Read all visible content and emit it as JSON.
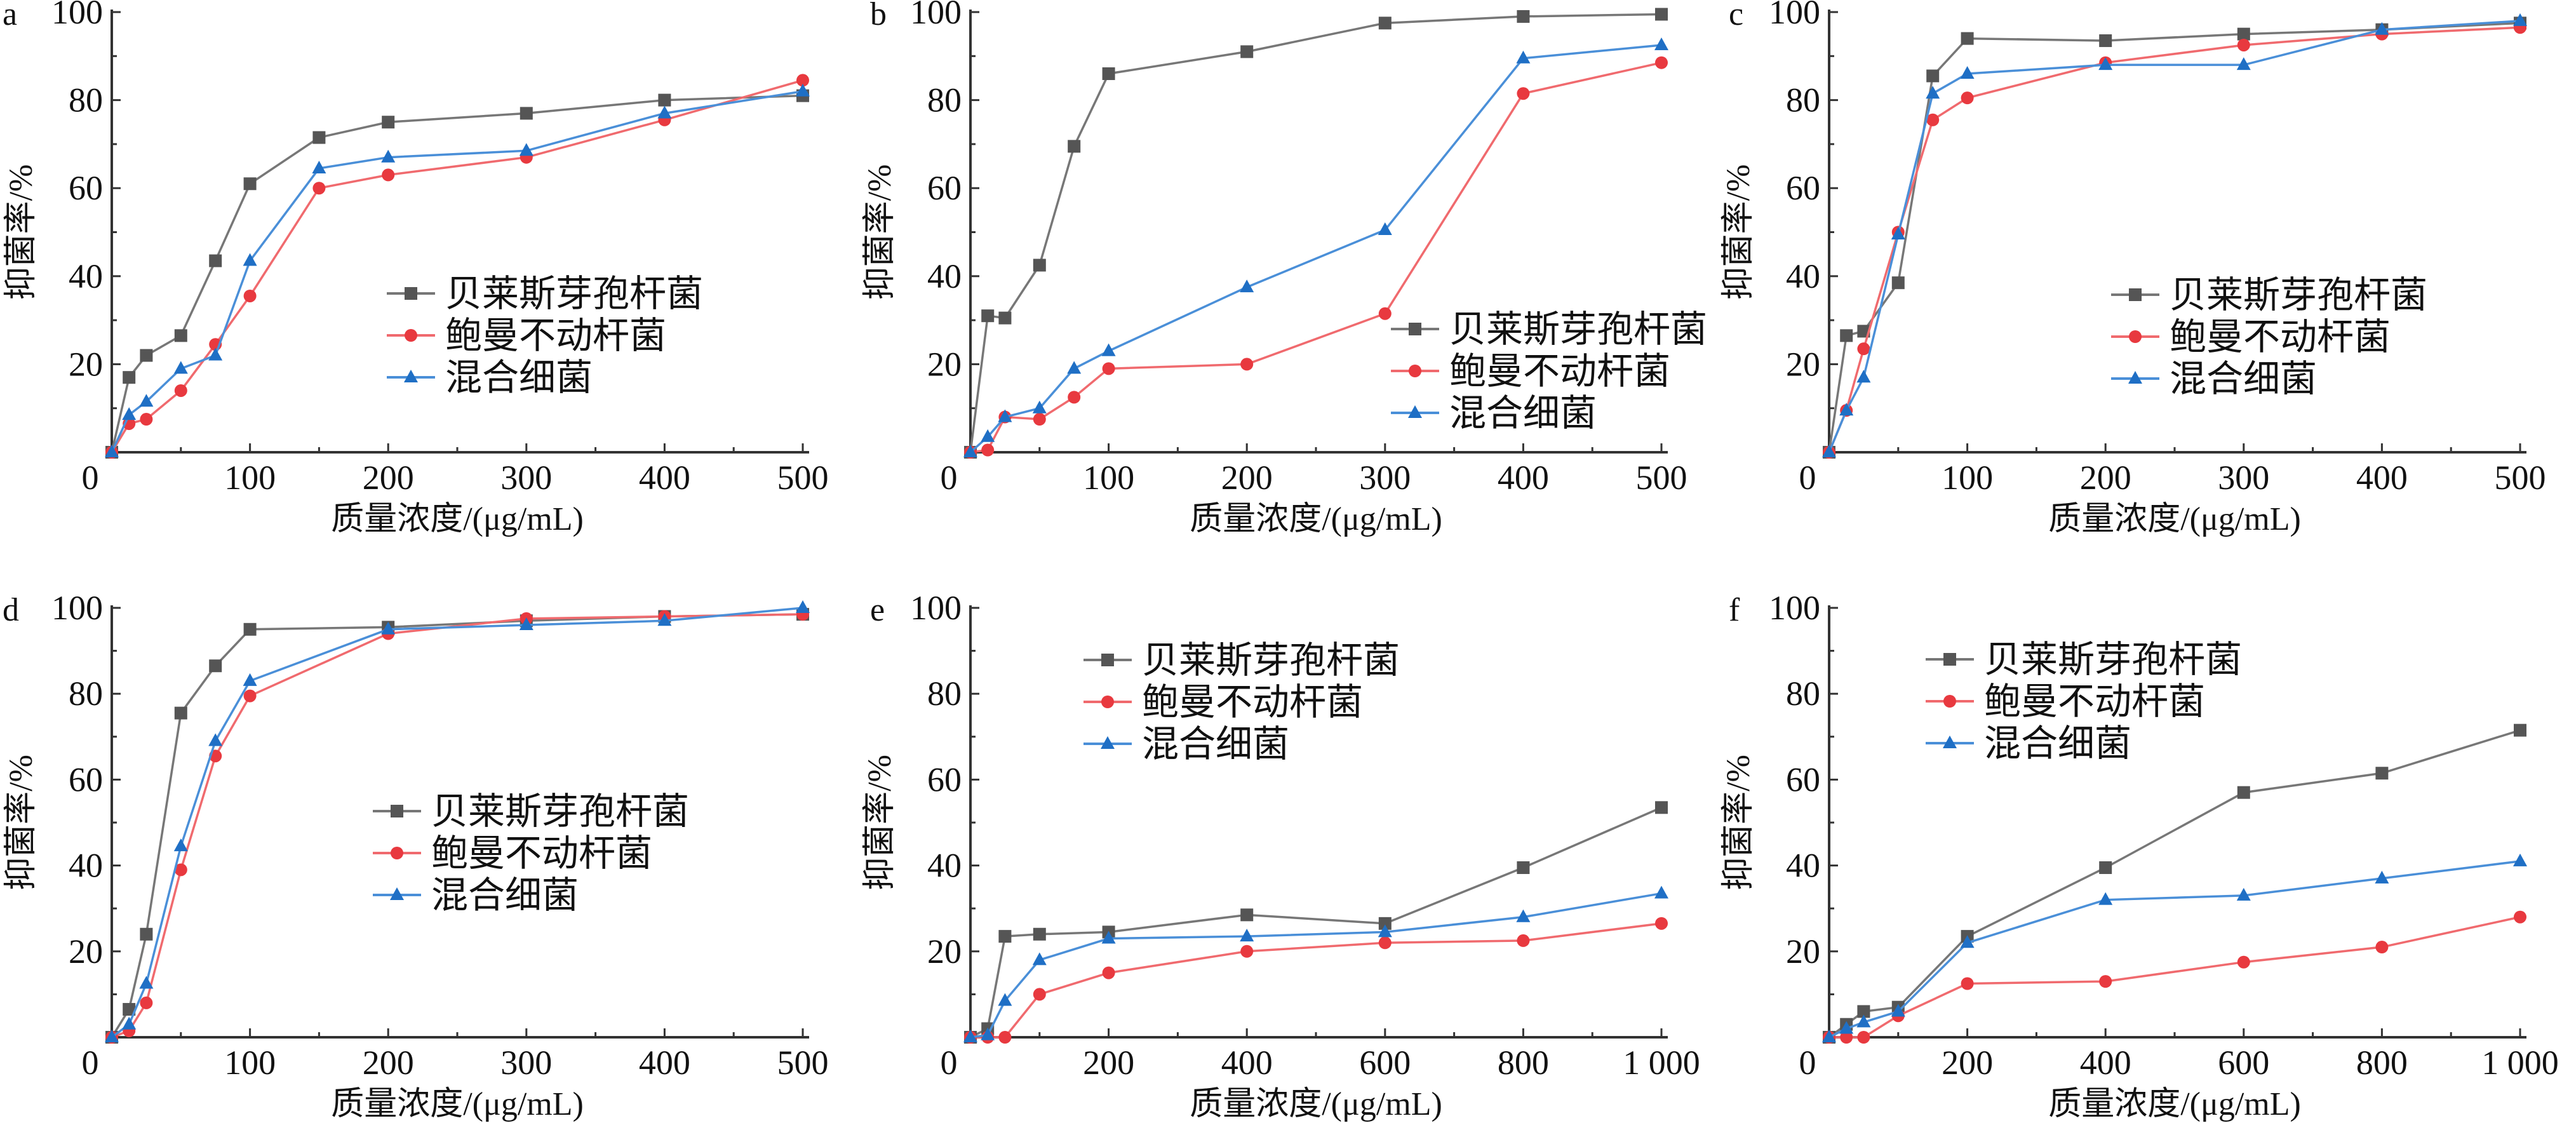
{
  "colors": {
    "series_1": "#555555",
    "series_2": "#e8393f",
    "series_3": "#1f6fc5"
  },
  "markers": [
    "square",
    "circle",
    "triangle"
  ],
  "chart_data": [
    {
      "type": "line",
      "panel": "a",
      "xlabel": "质量浓度/(μg/mL)",
      "ylabel": "抑菌率/%",
      "xlim": [
        0,
        500
      ],
      "ylim": [
        0,
        100
      ],
      "xticks": [
        "0",
        "100",
        "200",
        "300",
        "400",
        "500"
      ],
      "xtick_values": [
        0,
        100,
        200,
        300,
        400,
        500
      ],
      "yticks": [
        "20",
        "40",
        "60",
        "80",
        "100"
      ],
      "ytick_values": [
        20,
        40,
        60,
        80,
        100
      ],
      "legend_position": "center-right",
      "grid": false,
      "x": [
        0,
        12.5,
        25,
        50,
        75,
        100,
        150,
        200,
        300,
        400,
        500
      ],
      "series": [
        {
          "name": "贝莱斯芽孢杆菌",
          "values": [
            0,
            17,
            22,
            26.5,
            43.5,
            61,
            71.5,
            75,
            77,
            80,
            81
          ]
        },
        {
          "name": "鲍曼不动杆菌",
          "values": [
            0,
            6.5,
            7.5,
            14,
            24.5,
            35.5,
            60,
            63,
            67,
            75.5,
            84.5
          ]
        },
        {
          "name": "混合细菌",
          "values": [
            0,
            8.5,
            11.5,
            19,
            22,
            43.5,
            64.5,
            67,
            68.5,
            77,
            82
          ]
        }
      ]
    },
    {
      "type": "line",
      "panel": "b",
      "xlabel": "质量浓度/(μg/mL)",
      "ylabel": "抑菌率/%",
      "xlim": [
        0,
        500
      ],
      "ylim": [
        0,
        100
      ],
      "xticks": [
        "0",
        "100",
        "200",
        "300",
        "400",
        "500"
      ],
      "xtick_values": [
        0,
        100,
        200,
        300,
        400,
        500
      ],
      "yticks": [
        "20",
        "40",
        "60",
        "80",
        "100"
      ],
      "ytick_values": [
        20,
        40,
        60,
        80,
        100
      ],
      "legend_position": "bottom-right",
      "grid": false,
      "x": [
        0,
        12.5,
        25,
        50,
        75,
        100,
        200,
        300,
        400,
        500
      ],
      "series": [
        {
          "name": "贝莱斯芽孢杆菌",
          "values": [
            0,
            31,
            30.5,
            42.5,
            69.5,
            86,
            91,
            97.5,
            99,
            99.5
          ]
        },
        {
          "name": "鲍曼不动杆菌",
          "values": [
            0,
            0.5,
            8,
            7.5,
            12.5,
            19,
            20,
            31.5,
            81.5,
            88.5
          ]
        },
        {
          "name": "混合细菌",
          "values": [
            0,
            3.5,
            8,
            10,
            19,
            23,
            37.5,
            50.5,
            89.5,
            92.5
          ]
        }
      ]
    },
    {
      "type": "line",
      "panel": "c",
      "xlabel": "质量浓度/(μg/mL)",
      "ylabel": "抑菌率/%",
      "xlim": [
        0,
        500
      ],
      "ylim": [
        0,
        100
      ],
      "xticks": [
        "0",
        "100",
        "200",
        "300",
        "400",
        "500"
      ],
      "xtick_values": [
        0,
        100,
        200,
        300,
        400,
        500
      ],
      "yticks": [
        "20",
        "40",
        "60",
        "80",
        "100"
      ],
      "ytick_values": [
        20,
        40,
        60,
        80,
        100
      ],
      "legend_position": "center-right",
      "grid": false,
      "x": [
        0,
        12.5,
        25,
        50,
        75,
        100,
        200,
        300,
        400,
        500
      ],
      "series": [
        {
          "name": "贝莱斯芽孢杆菌",
          "values": [
            0,
            26.5,
            27.5,
            38.5,
            85.5,
            94,
            93.5,
            95,
            96,
            97.5
          ]
        },
        {
          "name": "鲍曼不动杆菌",
          "values": [
            0,
            9.5,
            23.5,
            50,
            75.5,
            80.5,
            88.5,
            92.5,
            95,
            96.5
          ]
        },
        {
          "name": "混合细菌",
          "values": [
            0,
            9.5,
            17,
            49.5,
            81.5,
            86,
            88,
            88,
            96,
            98
          ]
        }
      ]
    },
    {
      "type": "line",
      "panel": "d",
      "xlabel": "质量浓度/(μg/mL)",
      "ylabel": "抑菌率/%",
      "xlim": [
        0,
        500
      ],
      "ylim": [
        0,
        100
      ],
      "xticks": [
        "0",
        "100",
        "200",
        "300",
        "400",
        "500"
      ],
      "xtick_values": [
        0,
        100,
        200,
        300,
        400,
        500
      ],
      "yticks": [
        "20",
        "40",
        "60",
        "80",
        "100"
      ],
      "ytick_values": [
        20,
        40,
        60,
        80,
        100
      ],
      "legend_position": "center-right",
      "grid": false,
      "x": [
        0,
        12.5,
        25,
        50,
        75,
        100,
        200,
        300,
        400,
        500
      ],
      "series": [
        {
          "name": "贝莱斯芽孢杆菌",
          "values": [
            0,
            6.5,
            24,
            75.5,
            86.5,
            95,
            95.5,
            97,
            98,
            98.5
          ]
        },
        {
          "name": "鲍曼不动杆菌",
          "values": [
            0,
            1.5,
            8,
            39,
            65.5,
            79.5,
            94,
            97.5,
            98,
            98.5
          ]
        },
        {
          "name": "混合细菌",
          "values": [
            0,
            3,
            12.5,
            44.5,
            69,
            83,
            95,
            96,
            97,
            100
          ]
        }
      ]
    },
    {
      "type": "line",
      "panel": "e",
      "xlabel": "质量浓度/(μg/mL)",
      "ylabel": "抑菌率/%",
      "xlim": [
        0,
        1000
      ],
      "ylim": [
        0,
        100
      ],
      "xticks": [
        "0",
        "200",
        "400",
        "600",
        "800",
        "1 000"
      ],
      "xtick_values": [
        0,
        200,
        400,
        600,
        800,
        1000
      ],
      "yticks": [
        "20",
        "40",
        "60",
        "80",
        "100"
      ],
      "ytick_values": [
        20,
        40,
        60,
        80,
        100
      ],
      "legend_position": "top-left",
      "grid": false,
      "x": [
        0,
        25,
        50,
        100,
        200,
        400,
        600,
        800,
        1000
      ],
      "series": [
        {
          "name": "贝莱斯芽孢杆菌",
          "values": [
            0,
            2,
            23.5,
            24,
            24.5,
            28.5,
            26.5,
            39.5,
            53.5
          ]
        },
        {
          "name": "鲍曼不动杆菌",
          "values": [
            0,
            0,
            0,
            10,
            15,
            20,
            22,
            22.5,
            26.5
          ]
        },
        {
          "name": "混合细菌",
          "values": [
            0,
            0.5,
            8.5,
            18,
            23,
            23.5,
            24.5,
            28,
            33.5
          ]
        }
      ]
    },
    {
      "type": "line",
      "panel": "f",
      "xlabel": "质量浓度/(μg/mL)",
      "ylabel": "抑菌率/%",
      "xlim": [
        0,
        1000
      ],
      "ylim": [
        0,
        100
      ],
      "xticks": [
        "0",
        "200",
        "400",
        "600",
        "800",
        "1 000"
      ],
      "xtick_values": [
        0,
        200,
        400,
        600,
        800,
        1000
      ],
      "yticks": [
        "20",
        "40",
        "60",
        "80",
        "100"
      ],
      "ytick_values": [
        20,
        40,
        60,
        80,
        100
      ],
      "legend_position": "top-left",
      "grid": false,
      "x": [
        0,
        25,
        50,
        100,
        200,
        400,
        600,
        800,
        1000
      ],
      "series": [
        {
          "name": "贝莱斯芽孢杆菌",
          "values": [
            0,
            3,
            6,
            7,
            23.5,
            39.5,
            57,
            61.5,
            71.5
          ]
        },
        {
          "name": "鲍曼不动杆菌",
          "values": [
            0,
            0,
            0,
            5,
            12.5,
            13,
            17.5,
            21,
            28
          ]
        },
        {
          "name": "混合细菌",
          "values": [
            0,
            2,
            3.5,
            6,
            22,
            32,
            33,
            37,
            41
          ]
        }
      ]
    }
  ]
}
